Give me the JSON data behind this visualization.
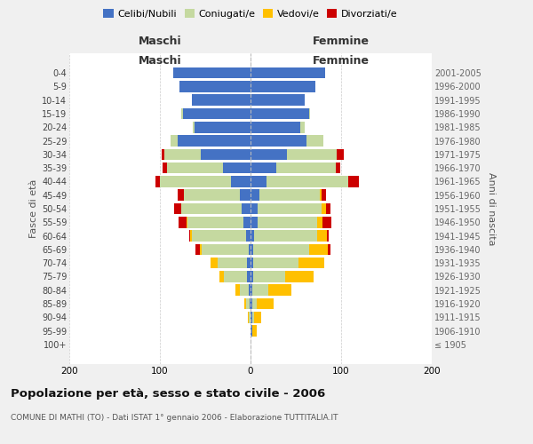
{
  "age_groups": [
    "100+",
    "95-99",
    "90-94",
    "85-89",
    "80-84",
    "75-79",
    "70-74",
    "65-69",
    "60-64",
    "55-59",
    "50-54",
    "45-49",
    "40-44",
    "35-39",
    "30-34",
    "25-29",
    "20-24",
    "15-19",
    "10-14",
    "5-9",
    "0-4"
  ],
  "birth_years": [
    "≤ 1905",
    "1906-1910",
    "1911-1915",
    "1916-1920",
    "1921-1925",
    "1926-1930",
    "1931-1935",
    "1936-1940",
    "1941-1945",
    "1946-1950",
    "1951-1955",
    "1956-1960",
    "1961-1965",
    "1966-1970",
    "1971-1975",
    "1976-1980",
    "1981-1985",
    "1986-1990",
    "1991-1995",
    "1996-2000",
    "2001-2005"
  ],
  "colors": {
    "celibi": "#4472c4",
    "coniugati": "#c5d9a0",
    "vedovi": "#ffc000",
    "divorziati": "#cc0000"
  },
  "males": {
    "celibi": [
      0,
      0,
      0,
      1,
      2,
      4,
      4,
      2,
      5,
      8,
      10,
      12,
      22,
      30,
      55,
      80,
      62,
      75,
      65,
      78,
      85
    ],
    "coniugati": [
      0,
      0,
      2,
      4,
      10,
      25,
      32,
      52,
      60,
      62,
      66,
      62,
      78,
      62,
      40,
      8,
      2,
      1,
      0,
      0,
      0
    ],
    "vedovi": [
      0,
      0,
      1,
      2,
      5,
      5,
      8,
      2,
      2,
      1,
      0,
      0,
      0,
      0,
      0,
      0,
      0,
      0,
      0,
      0,
      0
    ],
    "divorziati": [
      0,
      0,
      0,
      0,
      0,
      0,
      0,
      5,
      1,
      8,
      8,
      6,
      5,
      5,
      3,
      0,
      0,
      0,
      0,
      0,
      0
    ]
  },
  "females": {
    "celibi": [
      0,
      2,
      2,
      2,
      2,
      3,
      3,
      3,
      4,
      8,
      8,
      10,
      18,
      28,
      40,
      62,
      55,
      65,
      60,
      72,
      82
    ],
    "coniugati": [
      0,
      0,
      2,
      5,
      18,
      35,
      50,
      62,
      70,
      66,
      70,
      66,
      90,
      66,
      55,
      18,
      5,
      1,
      0,
      0,
      0
    ],
    "vedovi": [
      0,
      5,
      8,
      18,
      25,
      32,
      28,
      20,
      10,
      5,
      5,
      2,
      0,
      0,
      0,
      0,
      0,
      0,
      0,
      0,
      0
    ],
    "divorziati": [
      0,
      0,
      0,
      0,
      0,
      0,
      0,
      3,
      2,
      10,
      5,
      5,
      12,
      5,
      8,
      0,
      0,
      0,
      0,
      0,
      0
    ]
  },
  "xlim": [
    -200,
    200
  ],
  "xticks": [
    -200,
    -100,
    0,
    100,
    200
  ],
  "xticklabels": [
    "200",
    "100",
    "0",
    "100",
    "200"
  ],
  "title": "Popolazione per età, sesso e stato civile - 2006",
  "subtitle": "COMUNE DI MATHI (TO) - Dati ISTAT 1° gennaio 2006 - Elaborazione TUTTITALIA.IT",
  "ylabel_left": "Fasce di età",
  "ylabel_right": "Anni di nascita",
  "legend_labels": [
    "Celibi/Nubili",
    "Coniugati/e",
    "Vedovi/e",
    "Divorziati/e"
  ],
  "header_maschi": "Maschi",
  "header_femmine": "Femmine",
  "bg_color": "#f0f0f0",
  "plot_bg_color": "#ffffff",
  "bar_height": 0.82
}
